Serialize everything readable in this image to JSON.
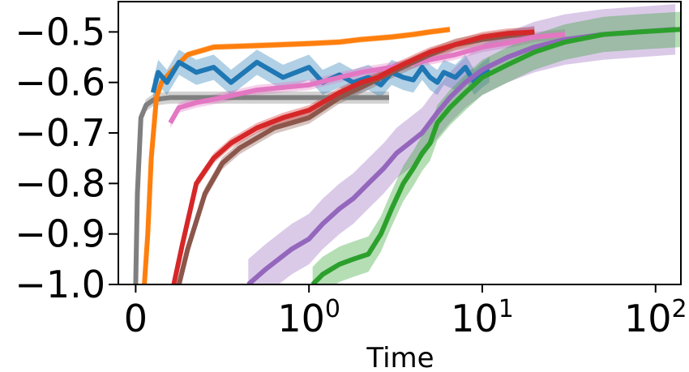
{
  "chart_data": {
    "type": "line",
    "title": "",
    "xlabel": "Time",
    "ylabel": "",
    "x_scale": "symlog",
    "xlim": [
      -0.1,
      140
    ],
    "ylim": [
      -1.0,
      -0.44
    ],
    "grid": false,
    "legend": "none",
    "x_ticks": [
      {
        "value": 0,
        "label": "0"
      },
      {
        "value": 1,
        "label": "10",
        "sup": "0"
      },
      {
        "value": 10,
        "label": "10",
        "sup": "1"
      },
      {
        "value": 100,
        "label": "10",
        "sup": "2"
      }
    ],
    "y_ticks": [
      {
        "value": -0.5,
        "label": "−0.5"
      },
      {
        "value": -0.6,
        "label": "−0.6"
      },
      {
        "value": -0.7,
        "label": "−0.7"
      },
      {
        "value": -0.8,
        "label": "−0.8"
      },
      {
        "value": -0.9,
        "label": "−0.9"
      },
      {
        "value": -1.0,
        "label": "−1.0"
      }
    ],
    "series": [
      {
        "color": "#7f7f7f",
        "band": 0.012,
        "x": [
          0.0,
          0.01,
          0.03,
          0.06,
          0.1,
          0.15,
          0.2,
          0.3,
          0.45,
          0.7,
          1.0,
          2.0,
          2.9
        ],
        "y": [
          -1.0,
          -0.82,
          -0.67,
          -0.645,
          -0.635,
          -0.632,
          -0.63,
          -0.63,
          -0.63,
          -0.63,
          -0.63,
          -0.63,
          -0.63
        ]
      },
      {
        "color": "#ff7f0e",
        "band": 0.006,
        "x": [
          0.05,
          0.07,
          0.09,
          0.12,
          0.15,
          0.2,
          0.3,
          0.45,
          0.7,
          1.0,
          1.5,
          2.0,
          3.0,
          4.0,
          5.0,
          6.5
        ],
        "y": [
          -1.0,
          -0.9,
          -0.75,
          -0.63,
          -0.6,
          -0.58,
          -0.545,
          -0.53,
          -0.527,
          -0.523,
          -0.52,
          -0.515,
          -0.51,
          -0.505,
          -0.5,
          -0.495
        ]
      },
      {
        "color": "#1f77b4",
        "band": 0.025,
        "x": [
          0.1,
          0.13,
          0.18,
          0.25,
          0.35,
          0.45,
          0.55,
          0.7,
          0.85,
          1.0,
          1.2,
          1.5,
          1.8,
          2.2,
          2.6,
          3.0,
          3.5,
          4.0,
          4.5,
          5.0,
          5.5,
          6.0,
          7.0,
          8.0,
          9.0,
          10.0,
          11.0
        ],
        "y": [
          -0.62,
          -0.58,
          -0.6,
          -0.56,
          -0.58,
          -0.57,
          -0.6,
          -0.56,
          -0.59,
          -0.57,
          -0.6,
          -0.585,
          -0.6,
          -0.59,
          -0.605,
          -0.58,
          -0.59,
          -0.595,
          -0.57,
          -0.59,
          -0.6,
          -0.58,
          -0.59,
          -0.57,
          -0.6,
          -0.585,
          -0.575
        ]
      },
      {
        "color": "#e377c2",
        "band": 0.01,
        "x": [
          0.2,
          0.25,
          0.35,
          0.5,
          0.7,
          1.0,
          1.5,
          2.0,
          3.0,
          4.0,
          5.0,
          7.0,
          10.0,
          15.0,
          20.0,
          30.0
        ],
        "y": [
          -0.68,
          -0.65,
          -0.64,
          -0.63,
          -0.615,
          -0.605,
          -0.59,
          -0.58,
          -0.57,
          -0.562,
          -0.555,
          -0.545,
          -0.53,
          -0.52,
          -0.51,
          -0.505
        ]
      },
      {
        "color": "#8c564b",
        "band": 0.012,
        "x": [
          0.25,
          0.3,
          0.4,
          0.5,
          0.6,
          0.8,
          1.0,
          1.5,
          2.0,
          3.0,
          4.0,
          5.0,
          7.0,
          10.0,
          14.0,
          20.0
        ],
        "y": [
          -1.0,
          -0.93,
          -0.82,
          -0.76,
          -0.73,
          -0.69,
          -0.67,
          -0.63,
          -0.61,
          -0.58,
          -0.56,
          -0.545,
          -0.525,
          -0.515,
          -0.508,
          -0.5
        ]
      },
      {
        "color": "#d62728",
        "band": 0.01,
        "x": [
          0.22,
          0.27,
          0.35,
          0.45,
          0.55,
          0.7,
          0.85,
          1.0,
          1.5,
          2.0,
          2.5,
          3.0,
          4.0,
          5.0,
          7.0,
          10.0,
          14.0,
          20.0
        ],
        "y": [
          -1.0,
          -0.92,
          -0.8,
          -0.75,
          -0.72,
          -0.69,
          -0.67,
          -0.655,
          -0.62,
          -0.6,
          -0.59,
          -0.575,
          -0.555,
          -0.54,
          -0.525,
          -0.51,
          -0.503,
          -0.5
        ]
      },
      {
        "color": "#9467bd",
        "band": 0.05,
        "x": [
          0.65,
          0.75,
          0.9,
          1.0,
          1.2,
          1.5,
          1.8,
          2.2,
          2.7,
          3.2,
          3.8,
          4.5,
          5.5,
          6.5,
          8.0,
          10.0,
          14.0,
          20.0,
          30.0,
          50.0,
          80.0,
          130.0
        ],
        "y": [
          -1.0,
          -0.97,
          -0.93,
          -0.91,
          -0.88,
          -0.85,
          -0.83,
          -0.8,
          -0.77,
          -0.74,
          -0.72,
          -0.7,
          -0.66,
          -0.63,
          -0.6,
          -0.575,
          -0.55,
          -0.53,
          -0.515,
          -0.505,
          -0.5,
          -0.495
        ]
      },
      {
        "color": "#2ca02c",
        "band": 0.035,
        "x": [
          1.05,
          1.2,
          1.5,
          1.8,
          2.2,
          2.6,
          3.0,
          3.5,
          4.0,
          4.5,
          5.0,
          5.5,
          6.5,
          8.0,
          10.0,
          14.0,
          20.0,
          30.0,
          50.0,
          80.0,
          140.0
        ],
        "y": [
          -1.0,
          -0.98,
          -0.96,
          -0.95,
          -0.94,
          -0.9,
          -0.85,
          -0.8,
          -0.77,
          -0.74,
          -0.72,
          -0.68,
          -0.65,
          -0.62,
          -0.59,
          -0.565,
          -0.54,
          -0.52,
          -0.505,
          -0.5,
          -0.495
        ]
      }
    ]
  }
}
